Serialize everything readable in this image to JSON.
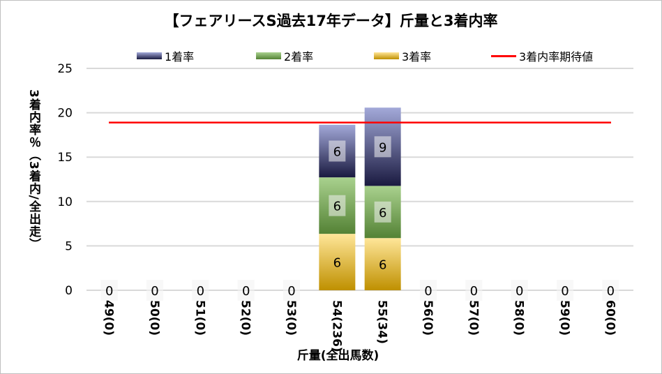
{
  "chart_data": {
    "type": "bar",
    "stacked": true,
    "title": "【フェアリースS過去17年データ】斤量と3着内率",
    "xlabel": "斤量(全出馬数)",
    "ylabel": "3着内率％（3着内/全出走）",
    "ylim": [
      0,
      25
    ],
    "yticks": [
      "0",
      "5",
      "10",
      "15",
      "20",
      "25"
    ],
    "grid": true,
    "legend_position": "top",
    "categories": [
      "49(0)",
      "50(0)",
      "51(0)",
      "52(0)",
      "53(0)",
      "54(236)",
      "55(34)",
      "56(0)",
      "57(0)",
      "58(0)",
      "59(0)",
      "60(0)"
    ],
    "series": [
      {
        "name": "3着率",
        "values": [
          0,
          0,
          0,
          0,
          0,
          6.36,
          5.88,
          0,
          0,
          0,
          0,
          0
        ],
        "labels": [
          "0",
          "0",
          "0",
          "0",
          "0",
          "6",
          "6",
          "0",
          "0",
          "0",
          "0",
          "0"
        ],
        "colors": [
          "#ffe699",
          "#bf9000"
        ]
      },
      {
        "name": "2着率",
        "values": [
          0,
          0,
          0,
          0,
          0,
          6.36,
          5.88,
          0,
          0,
          0,
          0,
          0
        ],
        "labels": [
          "",
          "",
          "",
          "",
          "",
          "6",
          "6",
          "",
          "",
          "",
          "",
          ""
        ],
        "colors": [
          "#a9d18e",
          "#548235"
        ]
      },
      {
        "name": "1着率",
        "values": [
          0,
          0,
          0,
          0,
          0,
          5.93,
          8.82,
          0,
          0,
          0,
          0,
          0
        ],
        "labels": [
          "",
          "",
          "",
          "",
          "",
          "6",
          "9",
          "",
          "",
          "",
          "",
          ""
        ],
        "colors": [
          "#a3a9d9",
          "#1a1a40"
        ]
      }
    ],
    "reference_line": {
      "name": "3着内率期待値",
      "value": 18.9,
      "color": "#ff0000"
    }
  }
}
